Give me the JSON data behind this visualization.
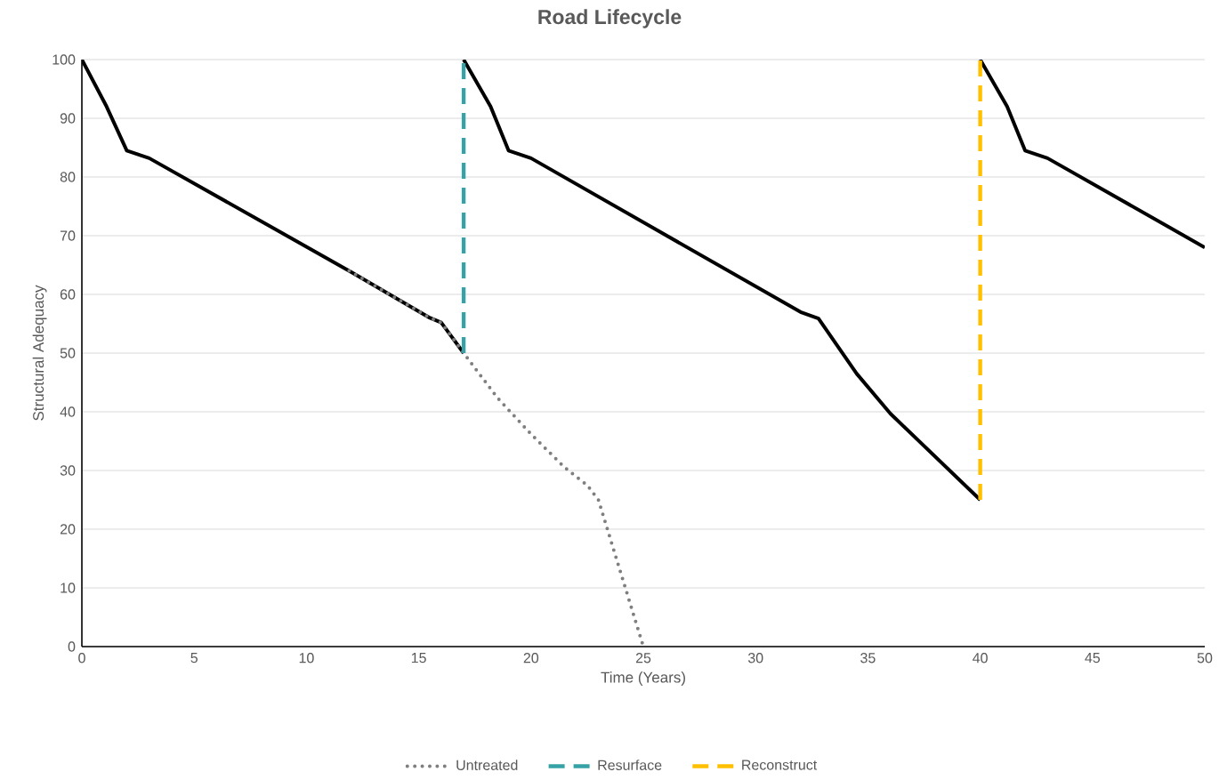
{
  "chart_data": {
    "type": "line",
    "title": "Road Lifecycle",
    "xlabel": "Time (Years)",
    "ylabel": "Structural Adequacy",
    "xlim": [
      0,
      50
    ],
    "ylim": [
      0,
      100
    ],
    "xticks": [
      0,
      5,
      10,
      15,
      20,
      25,
      30,
      35,
      40,
      45,
      50
    ],
    "yticks": [
      0,
      10,
      20,
      30,
      40,
      50,
      60,
      70,
      80,
      90,
      100
    ],
    "grid": "y",
    "legend": "bottom",
    "marker": "none",
    "series": [
      {
        "color": "#000000",
        "line_style": "solid",
        "x": [
          0,
          1.1,
          2.0,
          3.0,
          12,
          15.5,
          16,
          17
        ],
        "values": [
          100,
          92,
          84.5,
          83.2,
          63.8,
          56,
          55.2,
          50
        ]
      },
      {
        "color": "#000000",
        "line_style": "solid",
        "x": [
          17,
          18.2,
          19,
          20,
          32,
          32.8,
          34.5,
          36,
          40
        ],
        "values": [
          100,
          92,
          84.5,
          83.2,
          57,
          55.9,
          46.5,
          39.7,
          25
        ]
      },
      {
        "color": "#000000",
        "line_style": "solid",
        "x": [
          40,
          41.2,
          42,
          43,
          50
        ],
        "values": [
          100,
          92,
          84.5,
          83.2,
          68
        ]
      },
      {
        "name": "Untreated",
        "color": "#7f7f7f",
        "line_style": "dotted",
        "x": [
          11.9,
          15.5,
          16,
          17,
          18.5,
          20,
          21.5,
          22.5,
          23,
          24,
          25
        ],
        "values": [
          64,
          56,
          55.2,
          50,
          42.4,
          36.2,
          30.5,
          27.5,
          25,
          12.5,
          0
        ]
      },
      {
        "name": "Resurface",
        "color": "#36a2a5",
        "line_style": "dashed",
        "x": [
          17,
          17
        ],
        "values": [
          50,
          100
        ]
      },
      {
        "name": "Reconstruct",
        "color": "#ffc000",
        "line_style": "dashed",
        "x": [
          40,
          40
        ],
        "values": [
          25,
          100
        ]
      }
    ]
  }
}
